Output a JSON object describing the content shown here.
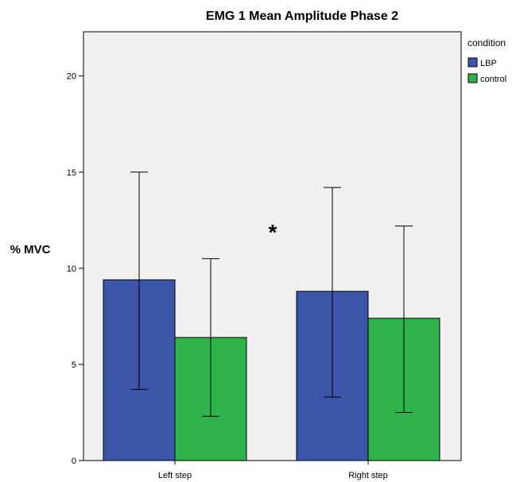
{
  "chart_data": {
    "type": "bar",
    "title": "EMG 1 Mean Amplitude Phase 2",
    "xlabel": "",
    "ylabel": "% MVC",
    "ylim": [
      0,
      22.3
    ],
    "yticks": [
      0,
      5,
      10,
      15,
      20
    ],
    "categories": [
      "Left step",
      "Right step"
    ],
    "series": [
      {
        "name": "LBP",
        "color": "#3b55a8",
        "values": [
          9.4,
          8.8
        ],
        "error_low": [
          3.7,
          3.3
        ],
        "error_high": [
          15.0,
          14.2
        ]
      },
      {
        "name": "control",
        "color": "#2db34a",
        "values": [
          6.4,
          7.4
        ],
        "error_low": [
          2.3,
          2.5
        ],
        "error_high": [
          10.5,
          12.2
        ]
      }
    ],
    "legend": {
      "title": "condition",
      "position": "top-right, outside plot"
    },
    "annotation": "*",
    "plot_background": "#f0f0f0",
    "grid": false
  }
}
